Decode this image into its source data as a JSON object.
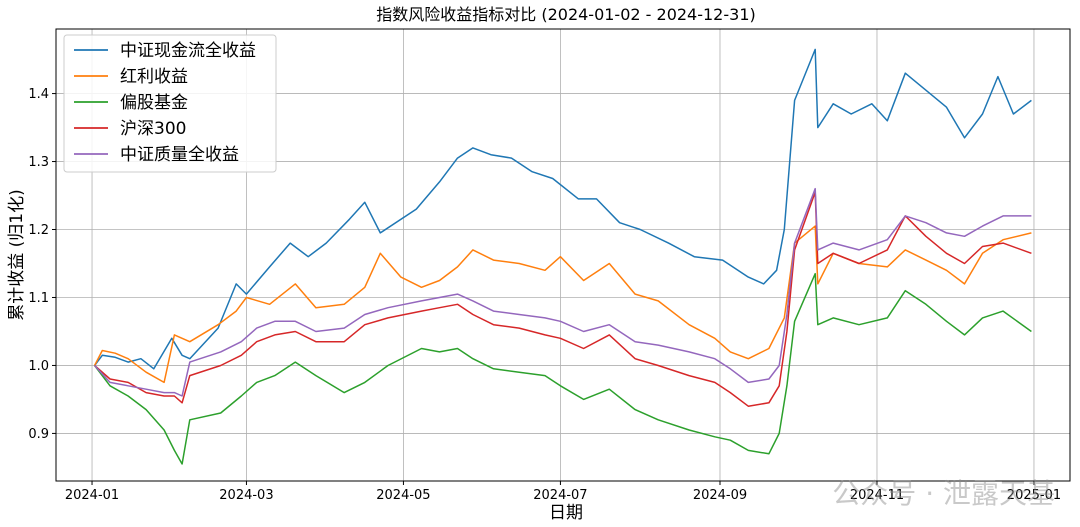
{
  "chart_data": {
    "type": "line",
    "title": "指数风险收益指标对比 (2024-01-02 - 2024-12-31)",
    "xlabel": "日期",
    "ylabel": "累计收益 (归1化)",
    "xlim": [
      "2023-12-18",
      "2025-01-15"
    ],
    "ylim": [
      0.83,
      1.495
    ],
    "yticks": [
      0.9,
      1.0,
      1.1,
      1.2,
      1.3,
      1.4
    ],
    "ytick_labels": [
      "0.9",
      "1.0",
      "1.1",
      "1.2",
      "1.3",
      "1.4"
    ],
    "xticks": [
      "2024-01-01",
      "2024-03-01",
      "2024-05-01",
      "2024-07-01",
      "2024-09-01",
      "2024-11-01",
      "2025-01-01"
    ],
    "xtick_labels": [
      "2024-01",
      "2024-03",
      "2024-05",
      "2024-07",
      "2024-09",
      "2024-11",
      "2025-01"
    ],
    "grid": true,
    "legend_position": "top-left",
    "watermark": "公众号 · 泄露天基",
    "series": [
      {
        "name": "中证现金流全收益",
        "color": "#1f77b4",
        "points": [
          [
            "2024-01-02",
            1.0
          ],
          [
            "2024-01-05",
            1.015
          ],
          [
            "2024-01-10",
            1.012
          ],
          [
            "2024-01-15",
            1.005
          ],
          [
            "2024-01-20",
            1.01
          ],
          [
            "2024-01-25",
            0.995
          ],
          [
            "2024-02-01",
            1.04
          ],
          [
            "2024-02-05",
            1.015
          ],
          [
            "2024-02-08",
            1.01
          ],
          [
            "2024-02-19",
            1.055
          ],
          [
            "2024-02-26",
            1.12
          ],
          [
            "2024-03-01",
            1.105
          ],
          [
            "2024-03-10",
            1.145
          ],
          [
            "2024-03-18",
            1.18
          ],
          [
            "2024-03-25",
            1.16
          ],
          [
            "2024-04-01",
            1.18
          ],
          [
            "2024-04-10",
            1.215
          ],
          [
            "2024-04-16",
            1.24
          ],
          [
            "2024-04-22",
            1.195
          ],
          [
            "2024-05-06",
            1.23
          ],
          [
            "2024-05-15",
            1.27
          ],
          [
            "2024-05-22",
            1.305
          ],
          [
            "2024-05-28",
            1.32
          ],
          [
            "2024-06-04",
            1.31
          ],
          [
            "2024-06-12",
            1.305
          ],
          [
            "2024-06-20",
            1.285
          ],
          [
            "2024-06-28",
            1.275
          ],
          [
            "2024-07-08",
            1.245
          ],
          [
            "2024-07-15",
            1.245
          ],
          [
            "2024-07-24",
            1.21
          ],
          [
            "2024-08-01",
            1.2
          ],
          [
            "2024-08-12",
            1.18
          ],
          [
            "2024-08-22",
            1.16
          ],
          [
            "2024-09-02",
            1.155
          ],
          [
            "2024-09-12",
            1.13
          ],
          [
            "2024-09-18",
            1.12
          ],
          [
            "2024-09-23",
            1.14
          ],
          [
            "2024-09-26",
            1.2
          ],
          [
            "2024-09-30",
            1.39
          ],
          [
            "2024-10-08",
            1.465
          ],
          [
            "2024-10-09",
            1.35
          ],
          [
            "2024-10-15",
            1.385
          ],
          [
            "2024-10-22",
            1.37
          ],
          [
            "2024-10-30",
            1.385
          ],
          [
            "2024-11-05",
            1.36
          ],
          [
            "2024-11-12",
            1.43
          ],
          [
            "2024-11-20",
            1.405
          ],
          [
            "2024-11-28",
            1.38
          ],
          [
            "2024-12-05",
            1.335
          ],
          [
            "2024-12-12",
            1.37
          ],
          [
            "2024-12-18",
            1.425
          ],
          [
            "2024-12-24",
            1.37
          ],
          [
            "2024-12-31",
            1.39
          ]
        ]
      },
      {
        "name": "红利收益",
        "color": "#ff7f0e",
        "points": [
          [
            "2024-01-02",
            1.0
          ],
          [
            "2024-01-05",
            1.022
          ],
          [
            "2024-01-10",
            1.018
          ],
          [
            "2024-01-15",
            1.01
          ],
          [
            "2024-01-22",
            0.99
          ],
          [
            "2024-01-29",
            0.975
          ],
          [
            "2024-02-02",
            1.045
          ],
          [
            "2024-02-08",
            1.035
          ],
          [
            "2024-02-19",
            1.06
          ],
          [
            "2024-02-26",
            1.08
          ],
          [
            "2024-03-01",
            1.1
          ],
          [
            "2024-03-10",
            1.09
          ],
          [
            "2024-03-20",
            1.12
          ],
          [
            "2024-03-28",
            1.085
          ],
          [
            "2024-04-08",
            1.09
          ],
          [
            "2024-04-16",
            1.115
          ],
          [
            "2024-04-22",
            1.165
          ],
          [
            "2024-04-30",
            1.13
          ],
          [
            "2024-05-08",
            1.115
          ],
          [
            "2024-05-15",
            1.125
          ],
          [
            "2024-05-22",
            1.145
          ],
          [
            "2024-05-28",
            1.17
          ],
          [
            "2024-06-05",
            1.155
          ],
          [
            "2024-06-15",
            1.15
          ],
          [
            "2024-06-25",
            1.14
          ],
          [
            "2024-07-01",
            1.16
          ],
          [
            "2024-07-10",
            1.125
          ],
          [
            "2024-07-20",
            1.15
          ],
          [
            "2024-07-30",
            1.105
          ],
          [
            "2024-08-08",
            1.095
          ],
          [
            "2024-08-20",
            1.06
          ],
          [
            "2024-08-30",
            1.04
          ],
          [
            "2024-09-05",
            1.02
          ],
          [
            "2024-09-12",
            1.01
          ],
          [
            "2024-09-20",
            1.025
          ],
          [
            "2024-09-26",
            1.07
          ],
          [
            "2024-09-30",
            1.18
          ],
          [
            "2024-10-08",
            1.205
          ],
          [
            "2024-10-09",
            1.12
          ],
          [
            "2024-10-15",
            1.165
          ],
          [
            "2024-10-25",
            1.15
          ],
          [
            "2024-11-05",
            1.145
          ],
          [
            "2024-11-12",
            1.17
          ],
          [
            "2024-11-20",
            1.155
          ],
          [
            "2024-11-28",
            1.14
          ],
          [
            "2024-12-05",
            1.12
          ],
          [
            "2024-12-12",
            1.165
          ],
          [
            "2024-12-20",
            1.185
          ],
          [
            "2024-12-31",
            1.195
          ]
        ]
      },
      {
        "name": "偏股基金",
        "color": "#2ca02c",
        "points": [
          [
            "2024-01-02",
            1.0
          ],
          [
            "2024-01-08",
            0.97
          ],
          [
            "2024-01-15",
            0.955
          ],
          [
            "2024-01-22",
            0.935
          ],
          [
            "2024-01-29",
            0.905
          ],
          [
            "2024-02-02",
            0.875
          ],
          [
            "2024-02-05",
            0.855
          ],
          [
            "2024-02-08",
            0.92
          ],
          [
            "2024-02-20",
            0.93
          ],
          [
            "2024-02-28",
            0.955
          ],
          [
            "2024-03-05",
            0.975
          ],
          [
            "2024-03-12",
            0.985
          ],
          [
            "2024-03-20",
            1.005
          ],
          [
            "2024-03-28",
            0.985
          ],
          [
            "2024-04-08",
            0.96
          ],
          [
            "2024-04-16",
            0.975
          ],
          [
            "2024-04-25",
            1.0
          ],
          [
            "2024-05-08",
            1.025
          ],
          [
            "2024-05-15",
            1.02
          ],
          [
            "2024-05-22",
            1.025
          ],
          [
            "2024-05-28",
            1.01
          ],
          [
            "2024-06-05",
            0.995
          ],
          [
            "2024-06-15",
            0.99
          ],
          [
            "2024-06-25",
            0.985
          ],
          [
            "2024-07-01",
            0.97
          ],
          [
            "2024-07-10",
            0.95
          ],
          [
            "2024-07-20",
            0.965
          ],
          [
            "2024-07-30",
            0.935
          ],
          [
            "2024-08-08",
            0.92
          ],
          [
            "2024-08-20",
            0.905
          ],
          [
            "2024-08-30",
            0.895
          ],
          [
            "2024-09-05",
            0.89
          ],
          [
            "2024-09-12",
            0.875
          ],
          [
            "2024-09-20",
            0.87
          ],
          [
            "2024-09-24",
            0.9
          ],
          [
            "2024-09-27",
            0.97
          ],
          [
            "2024-09-30",
            1.065
          ],
          [
            "2024-10-08",
            1.135
          ],
          [
            "2024-10-09",
            1.06
          ],
          [
            "2024-10-15",
            1.07
          ],
          [
            "2024-10-25",
            1.06
          ],
          [
            "2024-11-05",
            1.07
          ],
          [
            "2024-11-12",
            1.11
          ],
          [
            "2024-11-20",
            1.09
          ],
          [
            "2024-11-28",
            1.065
          ],
          [
            "2024-12-05",
            1.045
          ],
          [
            "2024-12-12",
            1.07
          ],
          [
            "2024-12-20",
            1.08
          ],
          [
            "2024-12-31",
            1.05
          ]
        ]
      },
      {
        "name": "沪深300",
        "color": "#d62728",
        "points": [
          [
            "2024-01-02",
            1.0
          ],
          [
            "2024-01-08",
            0.98
          ],
          [
            "2024-01-15",
            0.975
          ],
          [
            "2024-01-22",
            0.96
          ],
          [
            "2024-01-29",
            0.955
          ],
          [
            "2024-02-02",
            0.955
          ],
          [
            "2024-02-05",
            0.945
          ],
          [
            "2024-02-08",
            0.985
          ],
          [
            "2024-02-20",
            1.0
          ],
          [
            "2024-02-28",
            1.015
          ],
          [
            "2024-03-05",
            1.035
          ],
          [
            "2024-03-12",
            1.045
          ],
          [
            "2024-03-20",
            1.05
          ],
          [
            "2024-03-28",
            1.035
          ],
          [
            "2024-04-08",
            1.035
          ],
          [
            "2024-04-16",
            1.06
          ],
          [
            "2024-04-25",
            1.07
          ],
          [
            "2024-05-08",
            1.08
          ],
          [
            "2024-05-15",
            1.085
          ],
          [
            "2024-05-22",
            1.09
          ],
          [
            "2024-05-28",
            1.075
          ],
          [
            "2024-06-05",
            1.06
          ],
          [
            "2024-06-15",
            1.055
          ],
          [
            "2024-06-25",
            1.045
          ],
          [
            "2024-07-01",
            1.04
          ],
          [
            "2024-07-10",
            1.025
          ],
          [
            "2024-07-20",
            1.045
          ],
          [
            "2024-07-30",
            1.01
          ],
          [
            "2024-08-08",
            1.0
          ],
          [
            "2024-08-20",
            0.985
          ],
          [
            "2024-08-30",
            0.975
          ],
          [
            "2024-09-05",
            0.96
          ],
          [
            "2024-09-12",
            0.94
          ],
          [
            "2024-09-20",
            0.945
          ],
          [
            "2024-09-24",
            0.97
          ],
          [
            "2024-09-27",
            1.05
          ],
          [
            "2024-09-30",
            1.17
          ],
          [
            "2024-10-08",
            1.255
          ],
          [
            "2024-10-09",
            1.15
          ],
          [
            "2024-10-15",
            1.165
          ],
          [
            "2024-10-25",
            1.15
          ],
          [
            "2024-11-05",
            1.17
          ],
          [
            "2024-11-12",
            1.22
          ],
          [
            "2024-11-20",
            1.19
          ],
          [
            "2024-11-28",
            1.165
          ],
          [
            "2024-12-05",
            1.15
          ],
          [
            "2024-12-12",
            1.175
          ],
          [
            "2024-12-20",
            1.18
          ],
          [
            "2024-12-31",
            1.165
          ]
        ]
      },
      {
        "name": "中证质量全收益",
        "color": "#9467bd",
        "points": [
          [
            "2024-01-02",
            1.0
          ],
          [
            "2024-01-08",
            0.975
          ],
          [
            "2024-01-15",
            0.97
          ],
          [
            "2024-01-22",
            0.965
          ],
          [
            "2024-01-29",
            0.96
          ],
          [
            "2024-02-02",
            0.96
          ],
          [
            "2024-02-05",
            0.955
          ],
          [
            "2024-02-08",
            1.005
          ],
          [
            "2024-02-20",
            1.02
          ],
          [
            "2024-02-28",
            1.035
          ],
          [
            "2024-03-05",
            1.055
          ],
          [
            "2024-03-12",
            1.065
          ],
          [
            "2024-03-20",
            1.065
          ],
          [
            "2024-03-28",
            1.05
          ],
          [
            "2024-04-08",
            1.055
          ],
          [
            "2024-04-16",
            1.075
          ],
          [
            "2024-04-25",
            1.085
          ],
          [
            "2024-05-08",
            1.095
          ],
          [
            "2024-05-15",
            1.1
          ],
          [
            "2024-05-22",
            1.105
          ],
          [
            "2024-05-28",
            1.095
          ],
          [
            "2024-06-05",
            1.08
          ],
          [
            "2024-06-15",
            1.075
          ],
          [
            "2024-06-25",
            1.07
          ],
          [
            "2024-07-01",
            1.065
          ],
          [
            "2024-07-10",
            1.05
          ],
          [
            "2024-07-20",
            1.06
          ],
          [
            "2024-07-30",
            1.035
          ],
          [
            "2024-08-08",
            1.03
          ],
          [
            "2024-08-20",
            1.02
          ],
          [
            "2024-08-30",
            1.01
          ],
          [
            "2024-09-05",
            0.995
          ],
          [
            "2024-09-12",
            0.975
          ],
          [
            "2024-09-20",
            0.98
          ],
          [
            "2024-09-24",
            1.0
          ],
          [
            "2024-09-27",
            1.075
          ],
          [
            "2024-09-30",
            1.18
          ],
          [
            "2024-10-08",
            1.26
          ],
          [
            "2024-10-09",
            1.17
          ],
          [
            "2024-10-15",
            1.18
          ],
          [
            "2024-10-25",
            1.17
          ],
          [
            "2024-11-05",
            1.185
          ],
          [
            "2024-11-12",
            1.22
          ],
          [
            "2024-11-20",
            1.21
          ],
          [
            "2024-11-28",
            1.195
          ],
          [
            "2024-12-05",
            1.19
          ],
          [
            "2024-12-12",
            1.205
          ],
          [
            "2024-12-20",
            1.22
          ],
          [
            "2024-12-31",
            1.22
          ]
        ]
      }
    ]
  }
}
